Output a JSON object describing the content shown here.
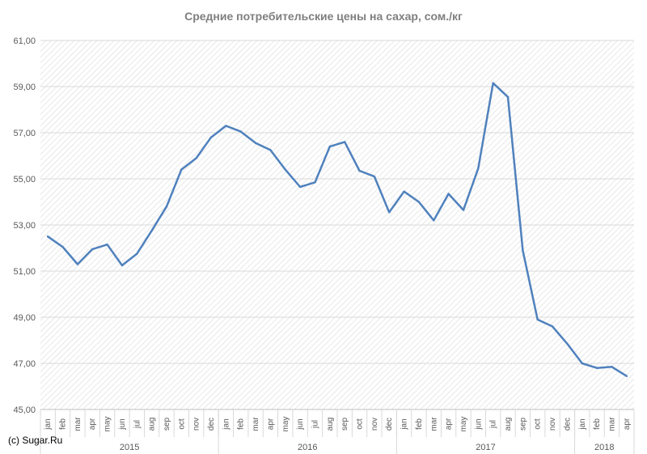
{
  "chart_data": {
    "type": "line",
    "title": "Средние потребительские цены на сахар, сом./кг",
    "xlabel": "",
    "ylabel": "",
    "ylim": [
      45,
      61
    ],
    "y_ticks": [
      "45,00",
      "47,00",
      "49,00",
      "51,00",
      "53,00",
      "55,00",
      "57,00",
      "59,00",
      "61,00"
    ],
    "grid": "hatched background",
    "x": [
      "jan",
      "feb",
      "mar",
      "apr",
      "may",
      "jun",
      "jul",
      "aug",
      "sep",
      "oct",
      "nov",
      "dec",
      "jan",
      "feb",
      "mar",
      "apr",
      "may",
      "jun",
      "jul",
      "aug",
      "sep",
      "oct",
      "nov",
      "dec",
      "jan",
      "feb",
      "mar",
      "apr",
      "may",
      "jun",
      "jul",
      "aug",
      "sep",
      "oct",
      "nov",
      "dec",
      "jan",
      "feb",
      "mar",
      "apr"
    ],
    "years": [
      {
        "label": "2015",
        "months": 12
      },
      {
        "label": "2016",
        "months": 12
      },
      {
        "label": "2017",
        "months": 12
      },
      {
        "label": "2018",
        "months": 4
      }
    ],
    "series": [
      {
        "color": "#4f81bd",
        "values": [
          52.5,
          52.05,
          51.3,
          51.95,
          52.15,
          51.25,
          51.75,
          52.75,
          53.8,
          55.4,
          55.9,
          56.8,
          57.3,
          57.05,
          56.55,
          56.25,
          55.4,
          54.65,
          54.85,
          56.4,
          56.6,
          55.35,
          55.1,
          53.55,
          54.45,
          54.0,
          53.2,
          54.35,
          53.65,
          55.45,
          59.15,
          58.55,
          51.9,
          48.9,
          48.6,
          47.85,
          47.0,
          46.8,
          46.85,
          46.45
        ]
      }
    ]
  },
  "footer": {
    "copyright": "(c) Sugar.Ru"
  }
}
